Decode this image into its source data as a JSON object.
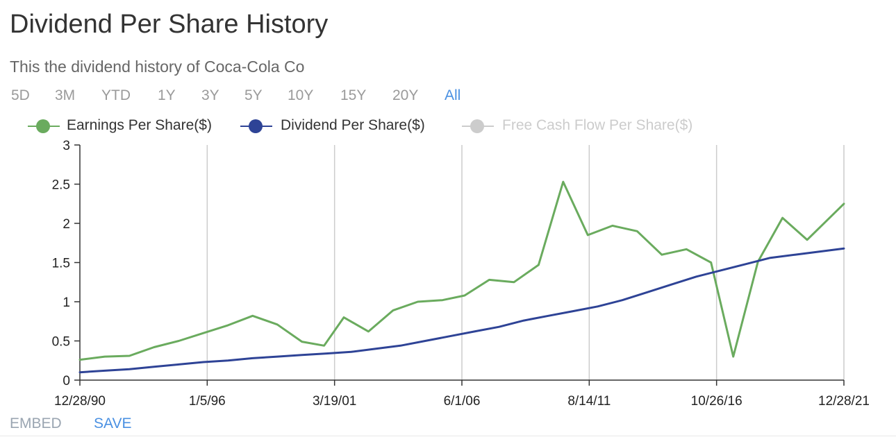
{
  "title": "Dividend Per Share History",
  "subtitle": "This the dividend history of Coca-Cola Co",
  "range_tabs": [
    {
      "label": "5D",
      "active": false
    },
    {
      "label": "3M",
      "active": false
    },
    {
      "label": "YTD",
      "active": false
    },
    {
      "label": "1Y",
      "active": false
    },
    {
      "label": "3Y",
      "active": false
    },
    {
      "label": "5Y",
      "active": false
    },
    {
      "label": "10Y",
      "active": false
    },
    {
      "label": "15Y",
      "active": false
    },
    {
      "label": "20Y",
      "active": false
    },
    {
      "label": "All",
      "active": true
    }
  ],
  "footer": {
    "embed_label": "EMBED",
    "save_label": "SAVE"
  },
  "colors": {
    "eps": "#6aab5e",
    "dps": "#2e4396",
    "fcf": "#cccccc",
    "active_tab": "#4a90e2",
    "grid": "#cccccc"
  },
  "chart_data": {
    "type": "line",
    "x_tick_labels": [
      "12/28/90",
      "1/5/96",
      "3/19/01",
      "6/1/06",
      "8/14/11",
      "10/26/16",
      "12/28/21"
    ],
    "x_range": [
      1990.99,
      2021.99
    ],
    "ylim": [
      0,
      3
    ],
    "y_ticks": [
      "0",
      "0.5",
      "1",
      "1.5",
      "2",
      "2.5",
      "3"
    ],
    "vertical_grid": true,
    "legend_position": "top-left",
    "series": [
      {
        "name": "Earnings Per Share($)",
        "visible": true,
        "x": [
          1990.99,
          1992.0,
          1993.0,
          1994.0,
          1995.0,
          1996.0,
          1997.0,
          1998.0,
          1999.0,
          2000.0,
          2000.9,
          2001.7,
          2002.7,
          2003.7,
          2004.7,
          2005.7,
          2006.6,
          2007.6,
          2008.6,
          2009.6,
          2010.6,
          2011.6,
          2012.6,
          2013.6,
          2014.6,
          2015.6,
          2016.6,
          2017.5,
          2018.5,
          2019.5,
          2020.5,
          2021.99
        ],
        "values": [
          0.26,
          0.3,
          0.31,
          0.42,
          0.5,
          0.6,
          0.7,
          0.82,
          0.71,
          0.49,
          0.44,
          0.8,
          0.62,
          0.89,
          1.0,
          1.02,
          1.08,
          1.28,
          1.25,
          1.47,
          2.53,
          1.85,
          1.97,
          1.9,
          1.6,
          1.67,
          1.5,
          0.3,
          1.51,
          2.07,
          1.79,
          2.25
        ]
      },
      {
        "name": "Dividend Per Share($)",
        "visible": true,
        "x": [
          1990.99,
          1992.0,
          1993.0,
          1994.0,
          1995.0,
          1996.0,
          1997.0,
          1998.0,
          1999.0,
          2000.0,
          2001.0,
          2002.0,
          2003.0,
          2004.0,
          2005.0,
          2006.0,
          2007.0,
          2008.0,
          2009.0,
          2010.0,
          2011.0,
          2012.0,
          2013.0,
          2014.0,
          2015.0,
          2016.0,
          2017.0,
          2018.0,
          2019.0,
          2020.0,
          2021.99
        ],
        "values": [
          0.1,
          0.12,
          0.14,
          0.17,
          0.2,
          0.23,
          0.25,
          0.28,
          0.3,
          0.32,
          0.34,
          0.36,
          0.4,
          0.44,
          0.5,
          0.56,
          0.62,
          0.68,
          0.76,
          0.82,
          0.88,
          0.94,
          1.02,
          1.12,
          1.22,
          1.32,
          1.4,
          1.48,
          1.56,
          1.6,
          1.68
        ]
      },
      {
        "name": "Free Cash Flow Per Share($)",
        "visible": false,
        "x": [],
        "values": []
      }
    ]
  }
}
